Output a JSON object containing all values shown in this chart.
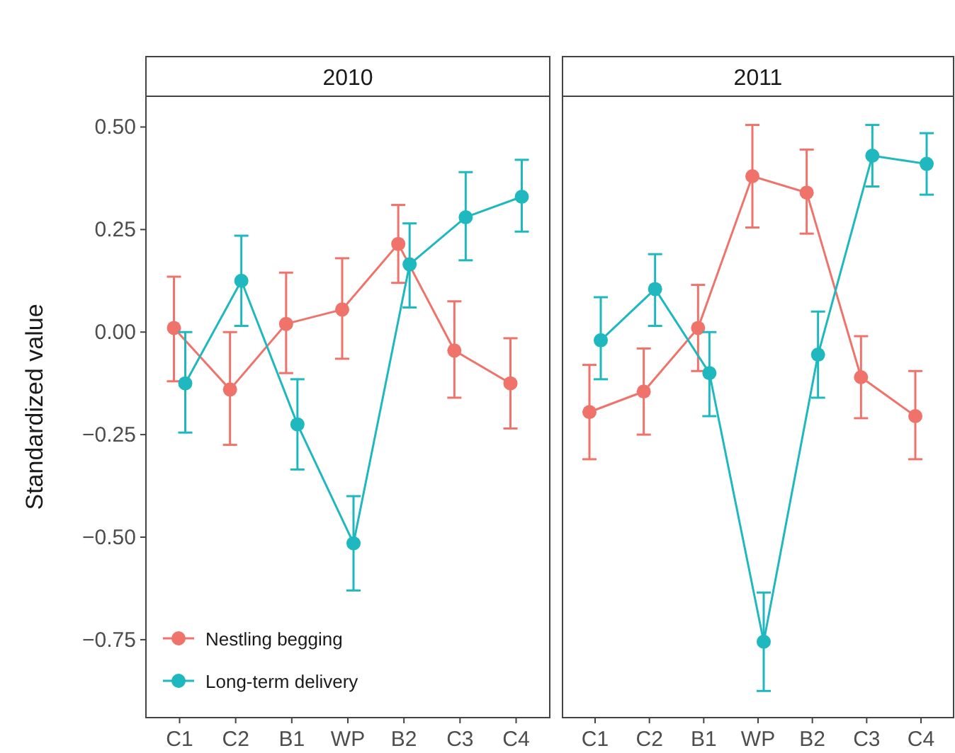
{
  "chart_data": [
    {
      "type": "line",
      "title": "2010",
      "ylabel": "Standardized value",
      "categories": [
        "C1",
        "C2",
        "B1",
        "WP",
        "B2",
        "C3",
        "C4"
      ],
      "ylim": [
        -0.94,
        0.575
      ],
      "yticks": [
        {
          "value": 0.5,
          "label": "0.50"
        },
        {
          "value": 0.25,
          "label": "0.25"
        },
        {
          "value": 0,
          "label": "0.00"
        },
        {
          "value": -0.25,
          "label": "−0.25"
        },
        {
          "value": -0.5,
          "label": "−0.50"
        },
        {
          "value": -0.75,
          "label": "−0.75"
        }
      ],
      "grid": false,
      "legend": "bottom left",
      "marker": "circle",
      "line_style": "solid",
      "series": [
        {
          "name": "Nestling begging",
          "color": "#f0736b",
          "values": [
            0.01,
            -0.14,
            0.02,
            0.055,
            0.215,
            -0.045,
            -0.125
          ],
          "errors": [
            [
              -0.12,
              0.135
            ],
            [
              -0.275,
              0.0
            ],
            [
              -0.1,
              0.145
            ],
            [
              -0.065,
              0.18
            ],
            [
              0.12,
              0.31
            ],
            [
              -0.16,
              0.075
            ],
            [
              -0.235,
              -0.015
            ]
          ]
        },
        {
          "name": "Long-term delivery",
          "color": "#1fb8bf",
          "values": [
            -0.125,
            0.125,
            -0.225,
            -0.515,
            0.165,
            0.28,
            0.33
          ],
          "errors": [
            [
              -0.245,
              0.0
            ],
            [
              0.015,
              0.235
            ],
            [
              -0.335,
              -0.115
            ],
            [
              -0.63,
              -0.4
            ],
            [
              0.06,
              0.265
            ],
            [
              0.175,
              0.39
            ],
            [
              0.245,
              0.42
            ]
          ]
        }
      ]
    },
    {
      "type": "line",
      "title": "2011",
      "categories": [
        "C1",
        "C2",
        "B1",
        "WP",
        "B2",
        "C3",
        "C4"
      ],
      "ylim": [
        -0.94,
        0.575
      ],
      "tick_labels": "x",
      "grid": false,
      "marker": "circle",
      "line_style": "solid",
      "series": [
        {
          "color": "#f0736b",
          "values": [
            -0.195,
            -0.145,
            0.01,
            0.38,
            0.34,
            -0.11,
            -0.205
          ],
          "errors": [
            [
              -0.31,
              -0.08
            ],
            [
              -0.25,
              -0.04
            ],
            [
              -0.095,
              0.115
            ],
            [
              0.255,
              0.505
            ],
            [
              0.24,
              0.445
            ],
            [
              -0.21,
              -0.01
            ],
            [
              -0.31,
              -0.095
            ]
          ]
        },
        {
          "color": "#1fb8bf",
          "values": [
            -0.02,
            0.105,
            -0.1,
            -0.755,
            -0.055,
            0.43,
            0.41
          ],
          "errors": [
            [
              -0.115,
              0.085
            ],
            [
              0.015,
              0.19
            ],
            [
              -0.205,
              0.0
            ],
            [
              -0.875,
              -0.635
            ],
            [
              -0.16,
              0.05
            ],
            [
              0.355,
              0.505
            ],
            [
              0.335,
              0.485
            ]
          ]
        }
      ]
    }
  ]
}
